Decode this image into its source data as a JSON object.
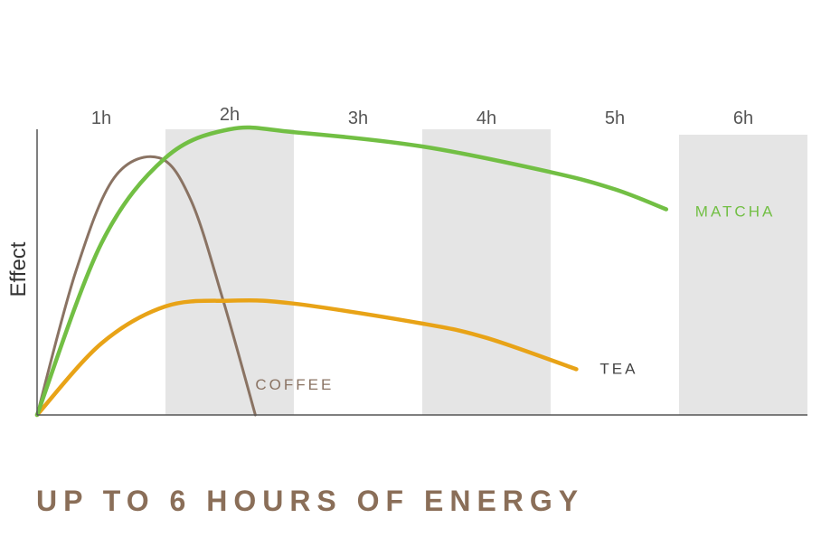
{
  "headline": "UP TO 6 HOURS OF ENERGY",
  "colors": {
    "headline": "#8a6e58",
    "band": "#e5e5e5",
    "axis": "#555555",
    "matcha": "#72bf44",
    "tea": "#e8a317",
    "coffee": "#8a7363"
  },
  "chart_data": {
    "type": "line",
    "title": "",
    "xlabel": "",
    "ylabel": "Effect",
    "x_ticks": [
      "1h",
      "2h",
      "3h",
      "4h",
      "5h",
      "6h"
    ],
    "xlim": [
      0,
      6
    ],
    "ylim": [
      0,
      1
    ],
    "grid": false,
    "bands": "alternating shaded hour columns (2h, 4h, 6h)",
    "series": [
      {
        "name": "MATCHA",
        "color_key": "matcha",
        "x": [
          0,
          0.5,
          1.0,
          1.5,
          2.0,
          3.0,
          4.0,
          4.5,
          4.9
        ],
        "y": [
          0.0,
          0.6,
          0.9,
          1.0,
          0.99,
          0.94,
          0.85,
          0.79,
          0.72
        ]
      },
      {
        "name": "TEA",
        "color_key": "tea",
        "x": [
          0,
          0.5,
          1.0,
          1.5,
          2.0,
          3.0,
          3.5,
          4.2
        ],
        "y": [
          0.0,
          0.25,
          0.38,
          0.4,
          0.39,
          0.32,
          0.27,
          0.16
        ]
      },
      {
        "name": "COFFEE",
        "color_key": "coffee",
        "x": [
          0,
          0.3,
          0.6,
          0.95,
          1.2,
          1.45,
          1.7
        ],
        "y": [
          0.0,
          0.5,
          0.83,
          0.9,
          0.75,
          0.4,
          0.0
        ]
      }
    ]
  }
}
